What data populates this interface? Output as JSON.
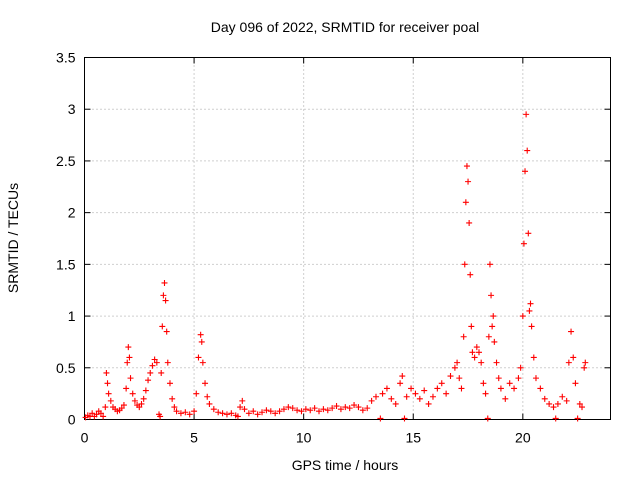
{
  "chart_data": {
    "type": "scatter",
    "title": "Day 096 of 2022, SRMTID for receiver poal",
    "xlabel": "GPS time / hours",
    "ylabel": "SRMTID / TECUs",
    "xlim": [
      0,
      24
    ],
    "ylim": [
      0,
      3.5
    ],
    "x_ticks": [
      0,
      5,
      10,
      15,
      20
    ],
    "y_ticks": [
      0,
      0.5,
      1,
      1.5,
      2,
      2.5,
      3,
      3.5
    ],
    "x_tick_labels": [
      "0",
      "5",
      "10",
      "15",
      "20"
    ],
    "y_tick_labels": [
      "0",
      "0.5",
      "1",
      "1.5",
      "2",
      "2.5",
      "3",
      "3.5"
    ],
    "grid": true,
    "marker": "plus",
    "series": [
      {
        "name": "SRMTID",
        "color": "#ff0000",
        "points": [
          [
            0.05,
            0.02
          ],
          [
            0.15,
            0.04
          ],
          [
            0.25,
            0.03
          ],
          [
            0.35,
            0.06
          ],
          [
            0.45,
            0.03
          ],
          [
            0.55,
            0.05
          ],
          [
            0.65,
            0.08
          ],
          [
            0.75,
            0.06
          ],
          [
            0.85,
            0.03
          ],
          [
            0.95,
            0.12
          ],
          [
            1.0,
            0.45
          ],
          [
            1.05,
            0.35
          ],
          [
            1.1,
            0.25
          ],
          [
            1.2,
            0.18
          ],
          [
            1.3,
            0.12
          ],
          [
            1.4,
            0.1
          ],
          [
            1.5,
            0.08
          ],
          [
            1.6,
            0.09
          ],
          [
            1.7,
            0.11
          ],
          [
            1.8,
            0.14
          ],
          [
            1.9,
            0.3
          ],
          [
            1.95,
            0.55
          ],
          [
            2.0,
            0.7
          ],
          [
            2.05,
            0.6
          ],
          [
            2.1,
            0.4
          ],
          [
            2.2,
            0.25
          ],
          [
            2.3,
            0.18
          ],
          [
            2.4,
            0.14
          ],
          [
            2.5,
            0.12
          ],
          [
            2.6,
            0.15
          ],
          [
            2.7,
            0.2
          ],
          [
            2.8,
            0.28
          ],
          [
            2.9,
            0.38
          ],
          [
            3.0,
            0.45
          ],
          [
            3.1,
            0.52
          ],
          [
            3.2,
            0.58
          ],
          [
            3.3,
            0.55
          ],
          [
            3.4,
            0.05
          ],
          [
            3.45,
            0.03
          ],
          [
            3.5,
            0.45
          ],
          [
            3.55,
            0.9
          ],
          [
            3.6,
            1.2
          ],
          [
            3.65,
            1.32
          ],
          [
            3.7,
            1.15
          ],
          [
            3.75,
            0.85
          ],
          [
            3.8,
            0.55
          ],
          [
            3.9,
            0.35
          ],
          [
            4.0,
            0.2
          ],
          [
            4.1,
            0.12
          ],
          [
            4.2,
            0.08
          ],
          [
            4.4,
            0.06
          ],
          [
            4.6,
            0.07
          ],
          [
            4.8,
            0.05
          ],
          [
            5.0,
            0.08
          ],
          [
            5.1,
            0.25
          ],
          [
            5.2,
            0.6
          ],
          [
            5.3,
            0.82
          ],
          [
            5.35,
            0.75
          ],
          [
            5.4,
            0.55
          ],
          [
            5.5,
            0.35
          ],
          [
            5.6,
            0.22
          ],
          [
            5.7,
            0.15
          ],
          [
            5.9,
            0.1
          ],
          [
            6.1,
            0.07
          ],
          [
            6.3,
            0.06
          ],
          [
            6.5,
            0.05
          ],
          [
            6.7,
            0.06
          ],
          [
            6.9,
            0.04
          ],
          [
            7.0,
            0.03
          ],
          [
            7.1,
            0.12
          ],
          [
            7.2,
            0.18
          ],
          [
            7.3,
            0.1
          ],
          [
            7.5,
            0.06
          ],
          [
            7.7,
            0.08
          ],
          [
            7.9,
            0.05
          ],
          [
            8.1,
            0.07
          ],
          [
            8.3,
            0.09
          ],
          [
            8.5,
            0.08
          ],
          [
            8.7,
            0.06
          ],
          [
            8.9,
            0.08
          ],
          [
            9.1,
            0.1
          ],
          [
            9.3,
            0.12
          ],
          [
            9.5,
            0.11
          ],
          [
            9.7,
            0.09
          ],
          [
            9.9,
            0.08
          ],
          [
            10.1,
            0.1
          ],
          [
            10.3,
            0.09
          ],
          [
            10.5,
            0.11
          ],
          [
            10.7,
            0.08
          ],
          [
            10.9,
            0.1
          ],
          [
            11.1,
            0.09
          ],
          [
            11.3,
            0.11
          ],
          [
            11.5,
            0.13
          ],
          [
            11.7,
            0.1
          ],
          [
            11.9,
            0.12
          ],
          [
            12.1,
            0.11
          ],
          [
            12.3,
            0.14
          ],
          [
            12.5,
            0.12
          ],
          [
            12.7,
            0.09
          ],
          [
            12.9,
            0.11
          ],
          [
            13.1,
            0.18
          ],
          [
            13.3,
            0.22
          ],
          [
            13.5,
            0.01
          ],
          [
            13.6,
            0.25
          ],
          [
            13.8,
            0.3
          ],
          [
            14.0,
            0.2
          ],
          [
            14.2,
            0.15
          ],
          [
            14.4,
            0.35
          ],
          [
            14.5,
            0.42
          ],
          [
            14.6,
            0.01
          ],
          [
            14.7,
            0.22
          ],
          [
            14.9,
            0.3
          ],
          [
            15.1,
            0.25
          ],
          [
            15.3,
            0.2
          ],
          [
            15.5,
            0.28
          ],
          [
            15.7,
            0.15
          ],
          [
            15.9,
            0.22
          ],
          [
            16.1,
            0.3
          ],
          [
            16.3,
            0.35
          ],
          [
            16.5,
            0.25
          ],
          [
            16.7,
            0.42
          ],
          [
            16.9,
            0.5
          ],
          [
            17.0,
            0.55
          ],
          [
            17.1,
            0.4
          ],
          [
            17.2,
            0.3
          ],
          [
            17.3,
            0.8
          ],
          [
            17.35,
            1.5
          ],
          [
            17.4,
            2.1
          ],
          [
            17.45,
            2.45
          ],
          [
            17.5,
            2.3
          ],
          [
            17.55,
            1.9
          ],
          [
            17.6,
            1.4
          ],
          [
            17.65,
            0.9
          ],
          [
            17.7,
            0.65
          ],
          [
            17.8,
            0.6
          ],
          [
            17.9,
            0.7
          ],
          [
            18.0,
            0.65
          ],
          [
            18.1,
            0.55
          ],
          [
            18.2,
            0.35
          ],
          [
            18.3,
            0.25
          ],
          [
            18.4,
            0.01
          ],
          [
            18.45,
            0.8
          ],
          [
            18.5,
            1.5
          ],
          [
            18.55,
            1.2
          ],
          [
            18.6,
            0.9
          ],
          [
            18.65,
            1.0
          ],
          [
            18.7,
            0.75
          ],
          [
            18.8,
            0.55
          ],
          [
            18.9,
            0.4
          ],
          [
            19.0,
            0.3
          ],
          [
            19.2,
            0.2
          ],
          [
            19.4,
            0.35
          ],
          [
            19.6,
            0.3
          ],
          [
            19.8,
            0.4
          ],
          [
            19.9,
            0.5
          ],
          [
            20.0,
            1.0
          ],
          [
            20.05,
            1.7
          ],
          [
            20.1,
            2.4
          ],
          [
            20.15,
            2.95
          ],
          [
            20.2,
            2.6
          ],
          [
            20.25,
            1.8
          ],
          [
            20.3,
            1.05
          ],
          [
            20.35,
            1.12
          ],
          [
            20.4,
            0.9
          ],
          [
            20.5,
            0.6
          ],
          [
            20.6,
            0.4
          ],
          [
            20.8,
            0.3
          ],
          [
            21.0,
            0.2
          ],
          [
            21.2,
            0.15
          ],
          [
            21.4,
            0.12
          ],
          [
            21.5,
            0.01
          ],
          [
            21.6,
            0.15
          ],
          [
            21.8,
            0.22
          ],
          [
            22.0,
            0.18
          ],
          [
            22.1,
            0.55
          ],
          [
            22.2,
            0.85
          ],
          [
            22.3,
            0.6
          ],
          [
            22.4,
            0.35
          ],
          [
            22.5,
            0.01
          ],
          [
            22.6,
            0.15
          ],
          [
            22.7,
            0.12
          ],
          [
            22.8,
            0.5
          ],
          [
            22.85,
            0.55
          ]
        ]
      }
    ]
  }
}
